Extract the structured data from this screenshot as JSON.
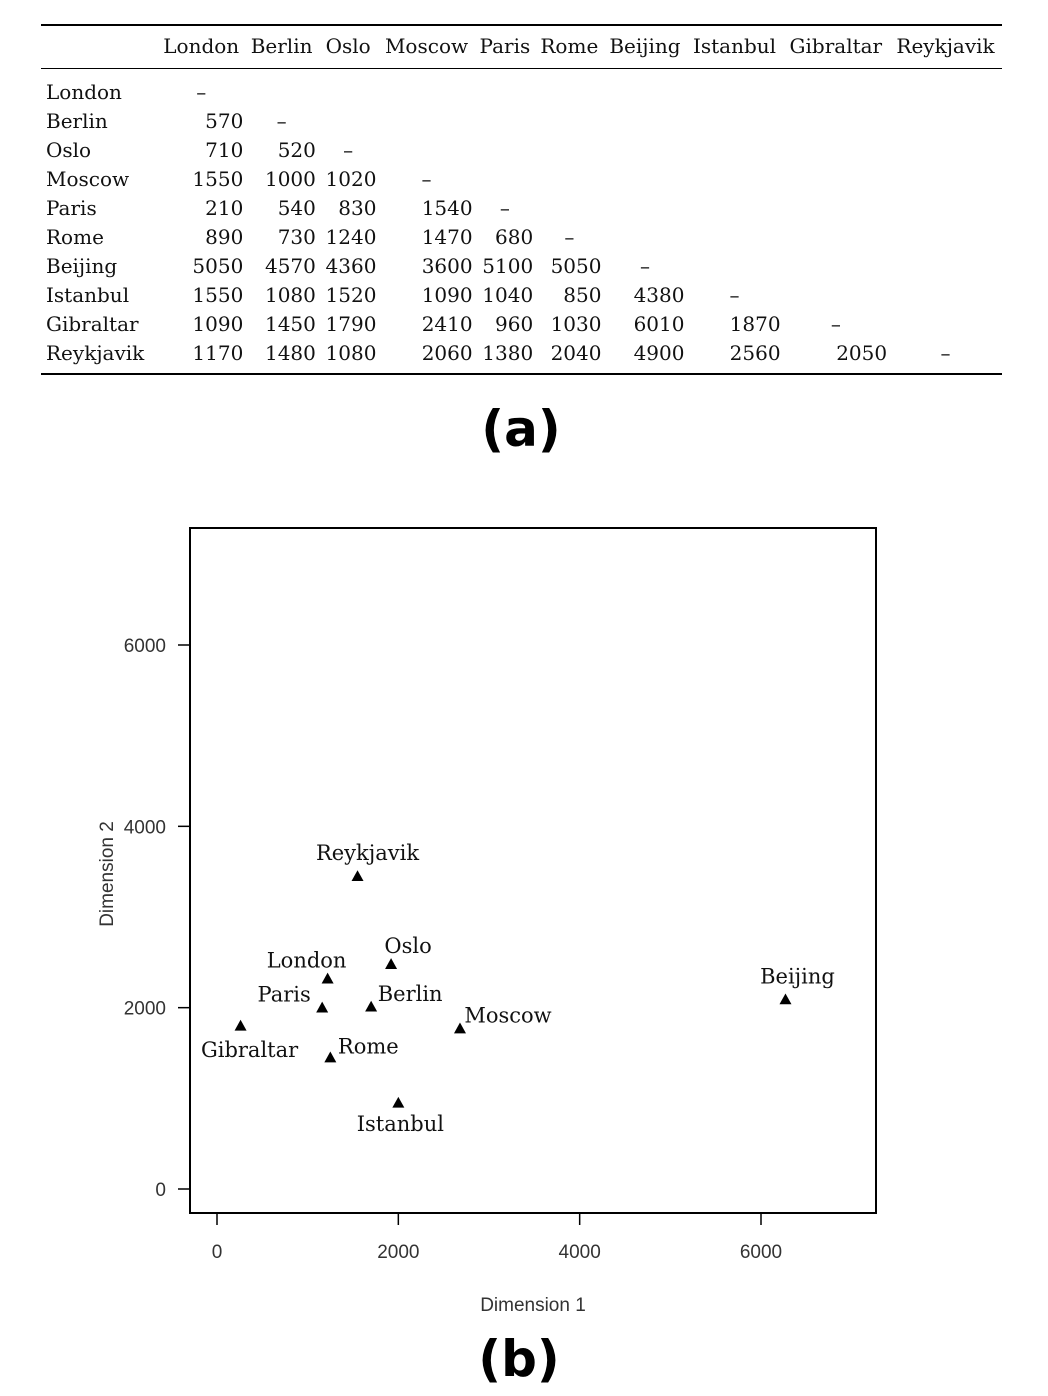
{
  "panel_a": {
    "label": "(a)",
    "cities": [
      "London",
      "Berlin",
      "Oslo",
      "Moscow",
      "Paris",
      "Rome",
      "Beijing",
      "Istanbul",
      "Gibraltar",
      "Reykjavik"
    ],
    "diagonal": "–",
    "rows": [
      {
        "city": "London",
        "values": []
      },
      {
        "city": "Berlin",
        "values": [
          "570"
        ]
      },
      {
        "city": "Oslo",
        "values": [
          "710",
          "520"
        ]
      },
      {
        "city": "Moscow",
        "values": [
          "1550",
          "1000",
          "1020"
        ]
      },
      {
        "city": "Paris",
        "values": [
          "210",
          "540",
          "830",
          "1540"
        ]
      },
      {
        "city": "Rome",
        "values": [
          "890",
          "730",
          "1240",
          "1470",
          "680"
        ]
      },
      {
        "city": "Beijing",
        "values": [
          "5050",
          "4570",
          "4360",
          "3600",
          "5100",
          "5050"
        ]
      },
      {
        "city": "Istanbul",
        "values": [
          "1550",
          "1080",
          "1520",
          "1090",
          "1040",
          "850",
          "4380"
        ]
      },
      {
        "city": "Gibraltar",
        "values": [
          "1090",
          "1450",
          "1790",
          "2410",
          "960",
          "1030",
          "6010",
          "1870"
        ]
      },
      {
        "city": "Reykjavik",
        "values": [
          "1170",
          "1480",
          "1080",
          "2060",
          "1380",
          "2040",
          "4900",
          "2560",
          "2050"
        ]
      }
    ]
  },
  "panel_b": {
    "label": "(b)"
  },
  "chart_data": {
    "type": "scatter",
    "xlabel": "Dimension 1",
    "ylabel": "Dimension 2",
    "x_ticks": [
      0,
      2000,
      4000,
      6000
    ],
    "y_ticks": [
      0,
      2000,
      4000,
      6000
    ],
    "marker": "triangle",
    "points": [
      {
        "label": "Reykjavik",
        "x": 1550,
        "y": 3450
      },
      {
        "label": "Oslo",
        "x": 1920,
        "y": 2480
      },
      {
        "label": "London",
        "x": 1220,
        "y": 2320
      },
      {
        "label": "Paris",
        "x": 1160,
        "y": 2000
      },
      {
        "label": "Berlin",
        "x": 1700,
        "y": 2010
      },
      {
        "label": "Gibraltar",
        "x": 260,
        "y": 1800
      },
      {
        "label": "Moscow",
        "x": 2680,
        "y": 1770
      },
      {
        "label": "Rome",
        "x": 1250,
        "y": 1450
      },
      {
        "label": "Istanbul",
        "x": 2000,
        "y": 950
      },
      {
        "label": "Beijing",
        "x": 6270,
        "y": 2090
      }
    ]
  }
}
